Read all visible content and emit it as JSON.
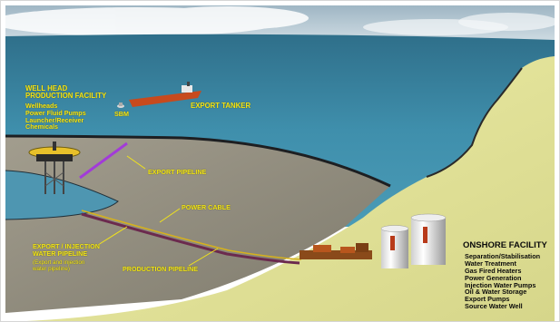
{
  "well_head": {
    "title_lines": [
      "WELL HEAD",
      "PRODUCTION FACILITY"
    ],
    "items": [
      "Wellheads",
      "Power Fluid Pumps",
      "Launcher/Receiver",
      "Chemicals"
    ]
  },
  "labels": {
    "sbm": "SBM",
    "export_tanker": "EXPORT TANKER",
    "export_pipeline": "EXPORT PIPELINE",
    "power_cable": "POWER CABLE",
    "export_injection_line1": "EXPORT / INJECTION",
    "export_injection_line2": "WATER  PIPELINE",
    "export_injection_note_line1": "(Export and injection",
    "export_injection_note_line2": "water pipeline)",
    "production_pipeline": "PRODUCTION PIPELINE"
  },
  "onshore": {
    "title": "ONSHORE FACILITY",
    "items": [
      "Separation/Stabilisation",
      "Water Treatment",
      "Gas Fired Heaters",
      "Power Generation",
      "Injection Water Pumps",
      "Oil & Water Storage",
      "Export Pumps",
      "Source Water Well"
    ]
  },
  "colors": {
    "sea": "#3c8aa6",
    "land": "#e3e29b",
    "seabed": "#8e8a7c",
    "label_yellow": "#f2e41a",
    "export_pipeline": "#a23bd8",
    "power_cable": "#d7b21c"
  }
}
